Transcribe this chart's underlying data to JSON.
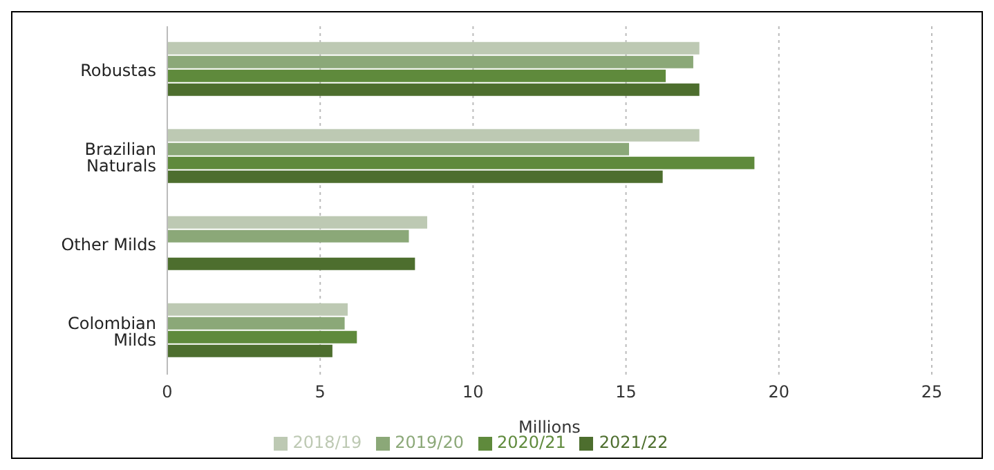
{
  "chart_data": {
    "type": "bar",
    "orientation": "horizontal",
    "xlabel": "Millions",
    "categories": [
      "Robustas",
      "Brazilian Naturals",
      "Other Milds",
      "Colombian Milds"
    ],
    "series": [
      {
        "name": "2018/19",
        "color": "#bdc9b3",
        "values": [
          17.4,
          17.4,
          8.5,
          5.9
        ]
      },
      {
        "name": "2019/20",
        "color": "#8ba878",
        "values": [
          17.2,
          15.1,
          7.9,
          5.8
        ]
      },
      {
        "name": "2020/21",
        "color": "#5f8a3c",
        "values": [
          16.3,
          19.2,
          null,
          6.2
        ]
      },
      {
        "name": "2021/22",
        "color": "#4d6e2e",
        "values": [
          17.4,
          16.2,
          8.1,
          5.4
        ]
      }
    ],
    "xlim": [
      0,
      25
    ],
    "xticks": [
      0,
      5,
      10,
      15,
      20,
      25
    ],
    "grid": "x",
    "legend": "bottom"
  }
}
